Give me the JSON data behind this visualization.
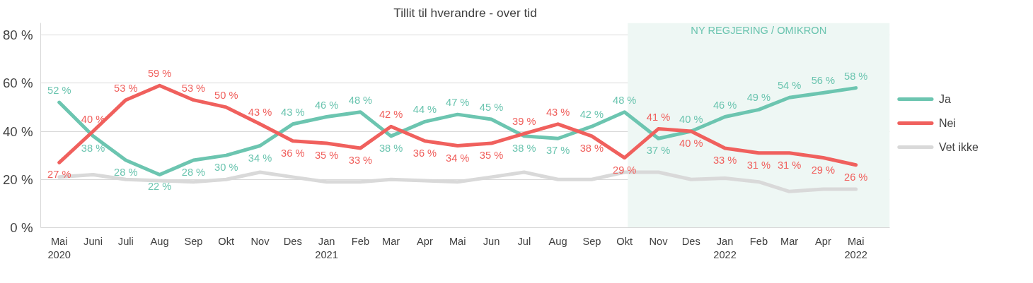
{
  "chart_data": {
    "type": "line",
    "title": "Tillit til hverandre - over tid",
    "x": [
      "2020-05",
      "2020-06",
      "2020-07",
      "2020-08",
      "2020-09",
      "2020-10",
      "2020-11",
      "2020-12",
      "2021-01",
      "2021-02",
      "2021-03",
      "2021-04",
      "2021-05",
      "2021-06",
      "2021-07",
      "2021-08",
      "2021-09",
      "2021-10",
      "2021-11",
      "2021-12",
      "2022-01",
      "2022-02",
      "2022-03",
      "2022-04",
      "2022-05"
    ],
    "xlim": [
      "2020-04-14",
      "2022-06-01"
    ],
    "xticks": [
      {
        "value": "2020-05",
        "label": "Mai 2020"
      },
      {
        "value": "2020-06",
        "label": "Juni"
      },
      {
        "value": "2020-07",
        "label": "Juli"
      },
      {
        "value": "2020-08",
        "label": "Aug"
      },
      {
        "value": "2020-09",
        "label": "Sep"
      },
      {
        "value": "2020-10",
        "label": "Okt"
      },
      {
        "value": "2020-11",
        "label": "Nov"
      },
      {
        "value": "2020-12",
        "label": "Des"
      },
      {
        "value": "2021-01",
        "label": "Jan 2021"
      },
      {
        "value": "2021-02",
        "label": "Feb"
      },
      {
        "value": "2021-03",
        "label": "Mar"
      },
      {
        "value": "2021-04",
        "label": "Apr"
      },
      {
        "value": "2021-05",
        "label": "Mai"
      },
      {
        "value": "2021-06",
        "label": "Jun"
      },
      {
        "value": "2021-07",
        "label": "Jul"
      },
      {
        "value": "2021-08",
        "label": "Aug"
      },
      {
        "value": "2021-09",
        "label": "Sep"
      },
      {
        "value": "2021-10",
        "label": "Okt"
      },
      {
        "value": "2021-11",
        "label": "Nov"
      },
      {
        "value": "2021-12",
        "label": "Des"
      },
      {
        "value": "2022-01",
        "label": "Jan 2022"
      },
      {
        "value": "2022-02",
        "label": "Feb"
      },
      {
        "value": "2022-03",
        "label": "Mar"
      },
      {
        "value": "2022-04",
        "label": "Apr"
      },
      {
        "value": "2022-05",
        "label": "Mai 2022"
      }
    ],
    "ylim": [
      0,
      85
    ],
    "yticks": [
      {
        "value": 0,
        "label": "0 %"
      },
      {
        "value": 20,
        "label": "20 %"
      },
      {
        "value": 40,
        "label": "40 %"
      },
      {
        "value": 60,
        "label": "60 %"
      },
      {
        "value": 80,
        "label": "80 %"
      }
    ],
    "grid": "y",
    "legend": "right",
    "line_style": "solid",
    "series": [
      {
        "name": "Ja",
        "color": "#6cc5b0",
        "values": [
          52,
          38,
          28,
          22,
          28,
          30,
          34,
          43,
          46,
          48,
          38,
          44,
          47,
          45,
          38,
          37,
          42,
          48,
          37,
          40,
          46,
          49,
          54,
          56,
          58
        ],
        "value_labels": [
          "52 %",
          "38 %",
          "28 %",
          "22 %",
          "28 %",
          "30 %",
          "34 %",
          "43 %",
          "46 %",
          "48 %",
          "38 %",
          "44 %",
          "47 %",
          "45 %",
          "38 %",
          "37 %",
          "42 %",
          "48 %",
          "37 %",
          "40 %",
          "46 %",
          "49 %",
          "54 %",
          "56 %",
          "58 %"
        ]
      },
      {
        "name": "Nei",
        "color": "#f0605d",
        "values": [
          27,
          40,
          53,
          59,
          53,
          50,
          43,
          36,
          35,
          33,
          42,
          36,
          34,
          35,
          39,
          43,
          38,
          29,
          41,
          40,
          33,
          31,
          31,
          29,
          26
        ],
        "value_labels": [
          "27 %",
          "40 %",
          "53 %",
          "59 %",
          "53 %",
          "50 %",
          "43 %",
          "36 %",
          "35 %",
          "33 %",
          "42 %",
          "36 %",
          "34 %",
          "35 %",
          "39 %",
          "43 %",
          "38 %",
          "29 %",
          "41 %",
          "40 %",
          "33 %",
          "31 %",
          "31 %",
          "29 %",
          "26 %"
        ]
      },
      {
        "name": "Vet ikke",
        "color": "#d9d9d9",
        "values": [
          21,
          22,
          20,
          19.5,
          19,
          20,
          23,
          21,
          19,
          19,
          20,
          19.5,
          19,
          21,
          23,
          20,
          20,
          23,
          23,
          20,
          20.5,
          19,
          15,
          16,
          16
        ]
      }
    ],
    "bands": [
      {
        "axis": "x",
        "from": "2021-10-04",
        "to": "2022-06-01",
        "label": "NY REGJERING / OMIKRON",
        "color": "#eef7f4"
      }
    ]
  }
}
